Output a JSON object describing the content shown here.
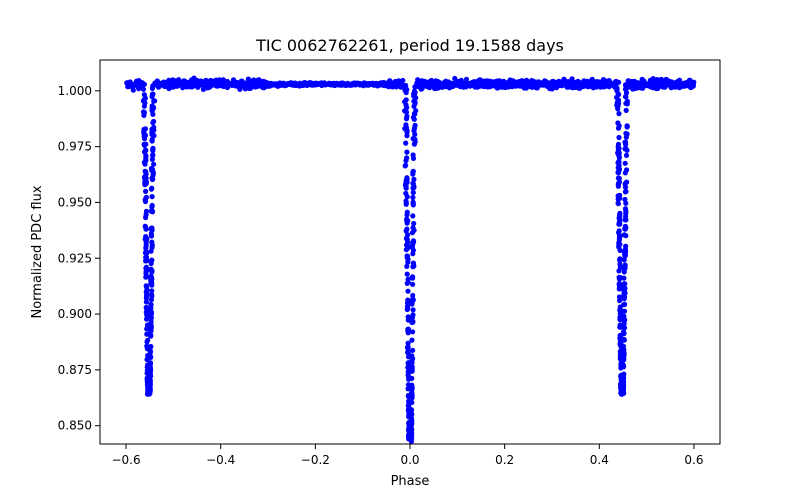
{
  "chart_data": {
    "type": "scatter",
    "title": "TIC 0062762261, period 19.1588 days",
    "xlabel": "Phase",
    "ylabel": "Normalized PDC flux",
    "xlim": [
      -0.655,
      0.655
    ],
    "ylim": [
      0.8418,
      1.0138
    ],
    "xticks": [
      -0.6,
      -0.4,
      -0.2,
      0.0,
      0.2,
      0.4,
      0.6
    ],
    "xtick_labels": [
      "−0.6",
      "−0.4",
      "−0.2",
      "0.0",
      "0.2",
      "0.4",
      "0.6"
    ],
    "yticks": [
      0.85,
      0.875,
      0.9,
      0.925,
      0.95,
      0.975,
      1.0
    ],
    "ytick_labels": [
      "0.850",
      "0.875",
      "0.900",
      "0.925",
      "0.950",
      "0.975",
      "1.000"
    ],
    "grid": false,
    "marker_color": "#0000ff",
    "series": [
      {
        "x_range": [
          -0.6,
          0.6
        ],
        "baseline_flux": 1.003,
        "baseline_scatter": 0.0015,
        "eclipses": [
          {
            "center_phase": -0.5517,
            "min_flux": 0.864,
            "half_width_phase": 0.0125
          },
          {
            "center_phase": 0.0003,
            "min_flux": 0.844,
            "half_width_phase": 0.0125
          },
          {
            "center_phase": 0.4483,
            "min_flux": 0.864,
            "half_width_phase": 0.0125
          }
        ]
      }
    ]
  }
}
